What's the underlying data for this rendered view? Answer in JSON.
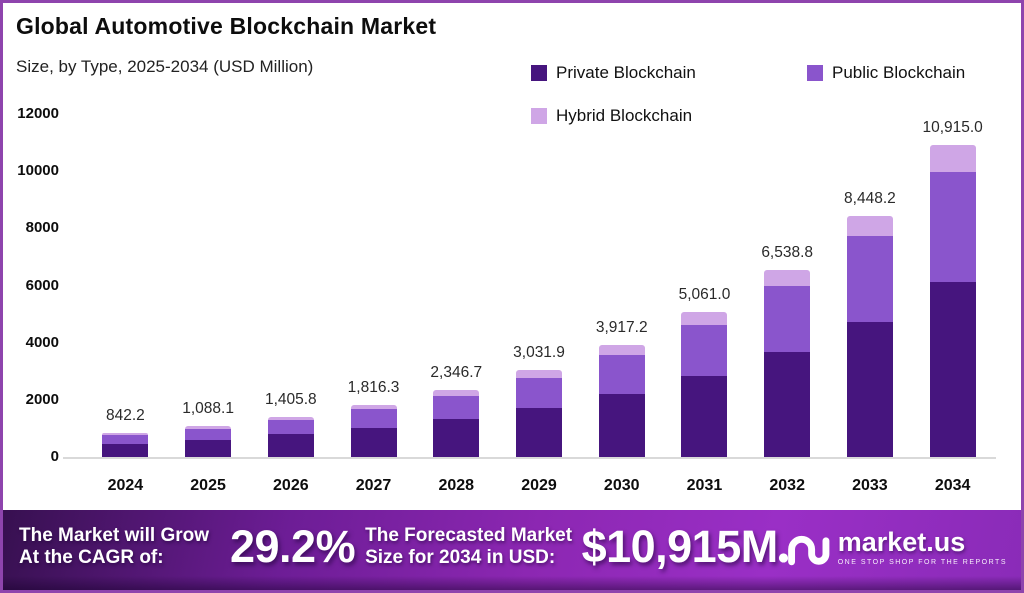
{
  "header": {
    "title": "Global Automotive Blockchain Market",
    "subtitle": "Size, by Type, 2025-2034 (USD Million)"
  },
  "colors": {
    "frame_border": "#8e44ad",
    "baseline": "#d9d9d9",
    "footer_gradient_start": "#371050",
    "footer_gradient_end": "#9a2fc6"
  },
  "chart_data": {
    "type": "bar",
    "stacked": true,
    "title": "Global Automotive Blockchain Market",
    "subtitle": "Size, by Type, 2025-2034 (USD Million)",
    "xlabel": "",
    "ylabel": "USD Million",
    "ylim": [
      0,
      12000
    ],
    "y_ticks": [
      0,
      2000,
      4000,
      6000,
      8000,
      10000,
      12000
    ],
    "gridlines": false,
    "legend_position": "top-right",
    "categories": [
      "2024",
      "2025",
      "2026",
      "2027",
      "2028",
      "2029",
      "2030",
      "2031",
      "2032",
      "2033",
      "2034"
    ],
    "totals": [
      842.2,
      1088.1,
      1405.8,
      1816.3,
      2346.7,
      3031.9,
      3917.2,
      5061.0,
      6538.8,
      8448.2,
      10915.0
    ],
    "total_labels": [
      "842.2",
      "1,088.1",
      "1,405.8",
      "1,816.3",
      "2,346.7",
      "3,031.9",
      "3,917.2",
      "5,061.0",
      "6,538.8",
      "8,448.2",
      "10,915.0"
    ],
    "series": [
      {
        "name": "Private Blockchain",
        "color": "#46157e",
        "values": [
          471.6,
          609.3,
          787.2,
          1017.1,
          1314.2,
          1697.9,
          2193.6,
          2834.2,
          3661.7,
          4731.0,
          6112.4
        ]
      },
      {
        "name": "Public Blockchain",
        "color": "#8a55cc",
        "values": [
          299.0,
          386.3,
          499.1,
          644.8,
          833.1,
          1076.3,
          1390.6,
          1796.7,
          2321.3,
          2999.1,
          3874.8
        ]
      },
      {
        "name": "Hybrid Blockchain",
        "color": "#cfa6e6",
        "values": [
          71.6,
          92.5,
          119.5,
          154.4,
          199.4,
          257.7,
          333.0,
          430.1,
          555.8,
          718.1,
          927.8
        ]
      }
    ]
  },
  "footer": {
    "cagr_line1": "The Market will Grow",
    "cagr_line2": "At the CAGR of:",
    "cagr_value": "29.2%",
    "forecast_line1": "The Forecasted Market",
    "forecast_line2": "Size for 2034 in USD:",
    "forecast_value": "$10,915M",
    "brand": "market.us",
    "brand_tagline": "ONE STOP SHOP FOR THE REPORTS"
  }
}
